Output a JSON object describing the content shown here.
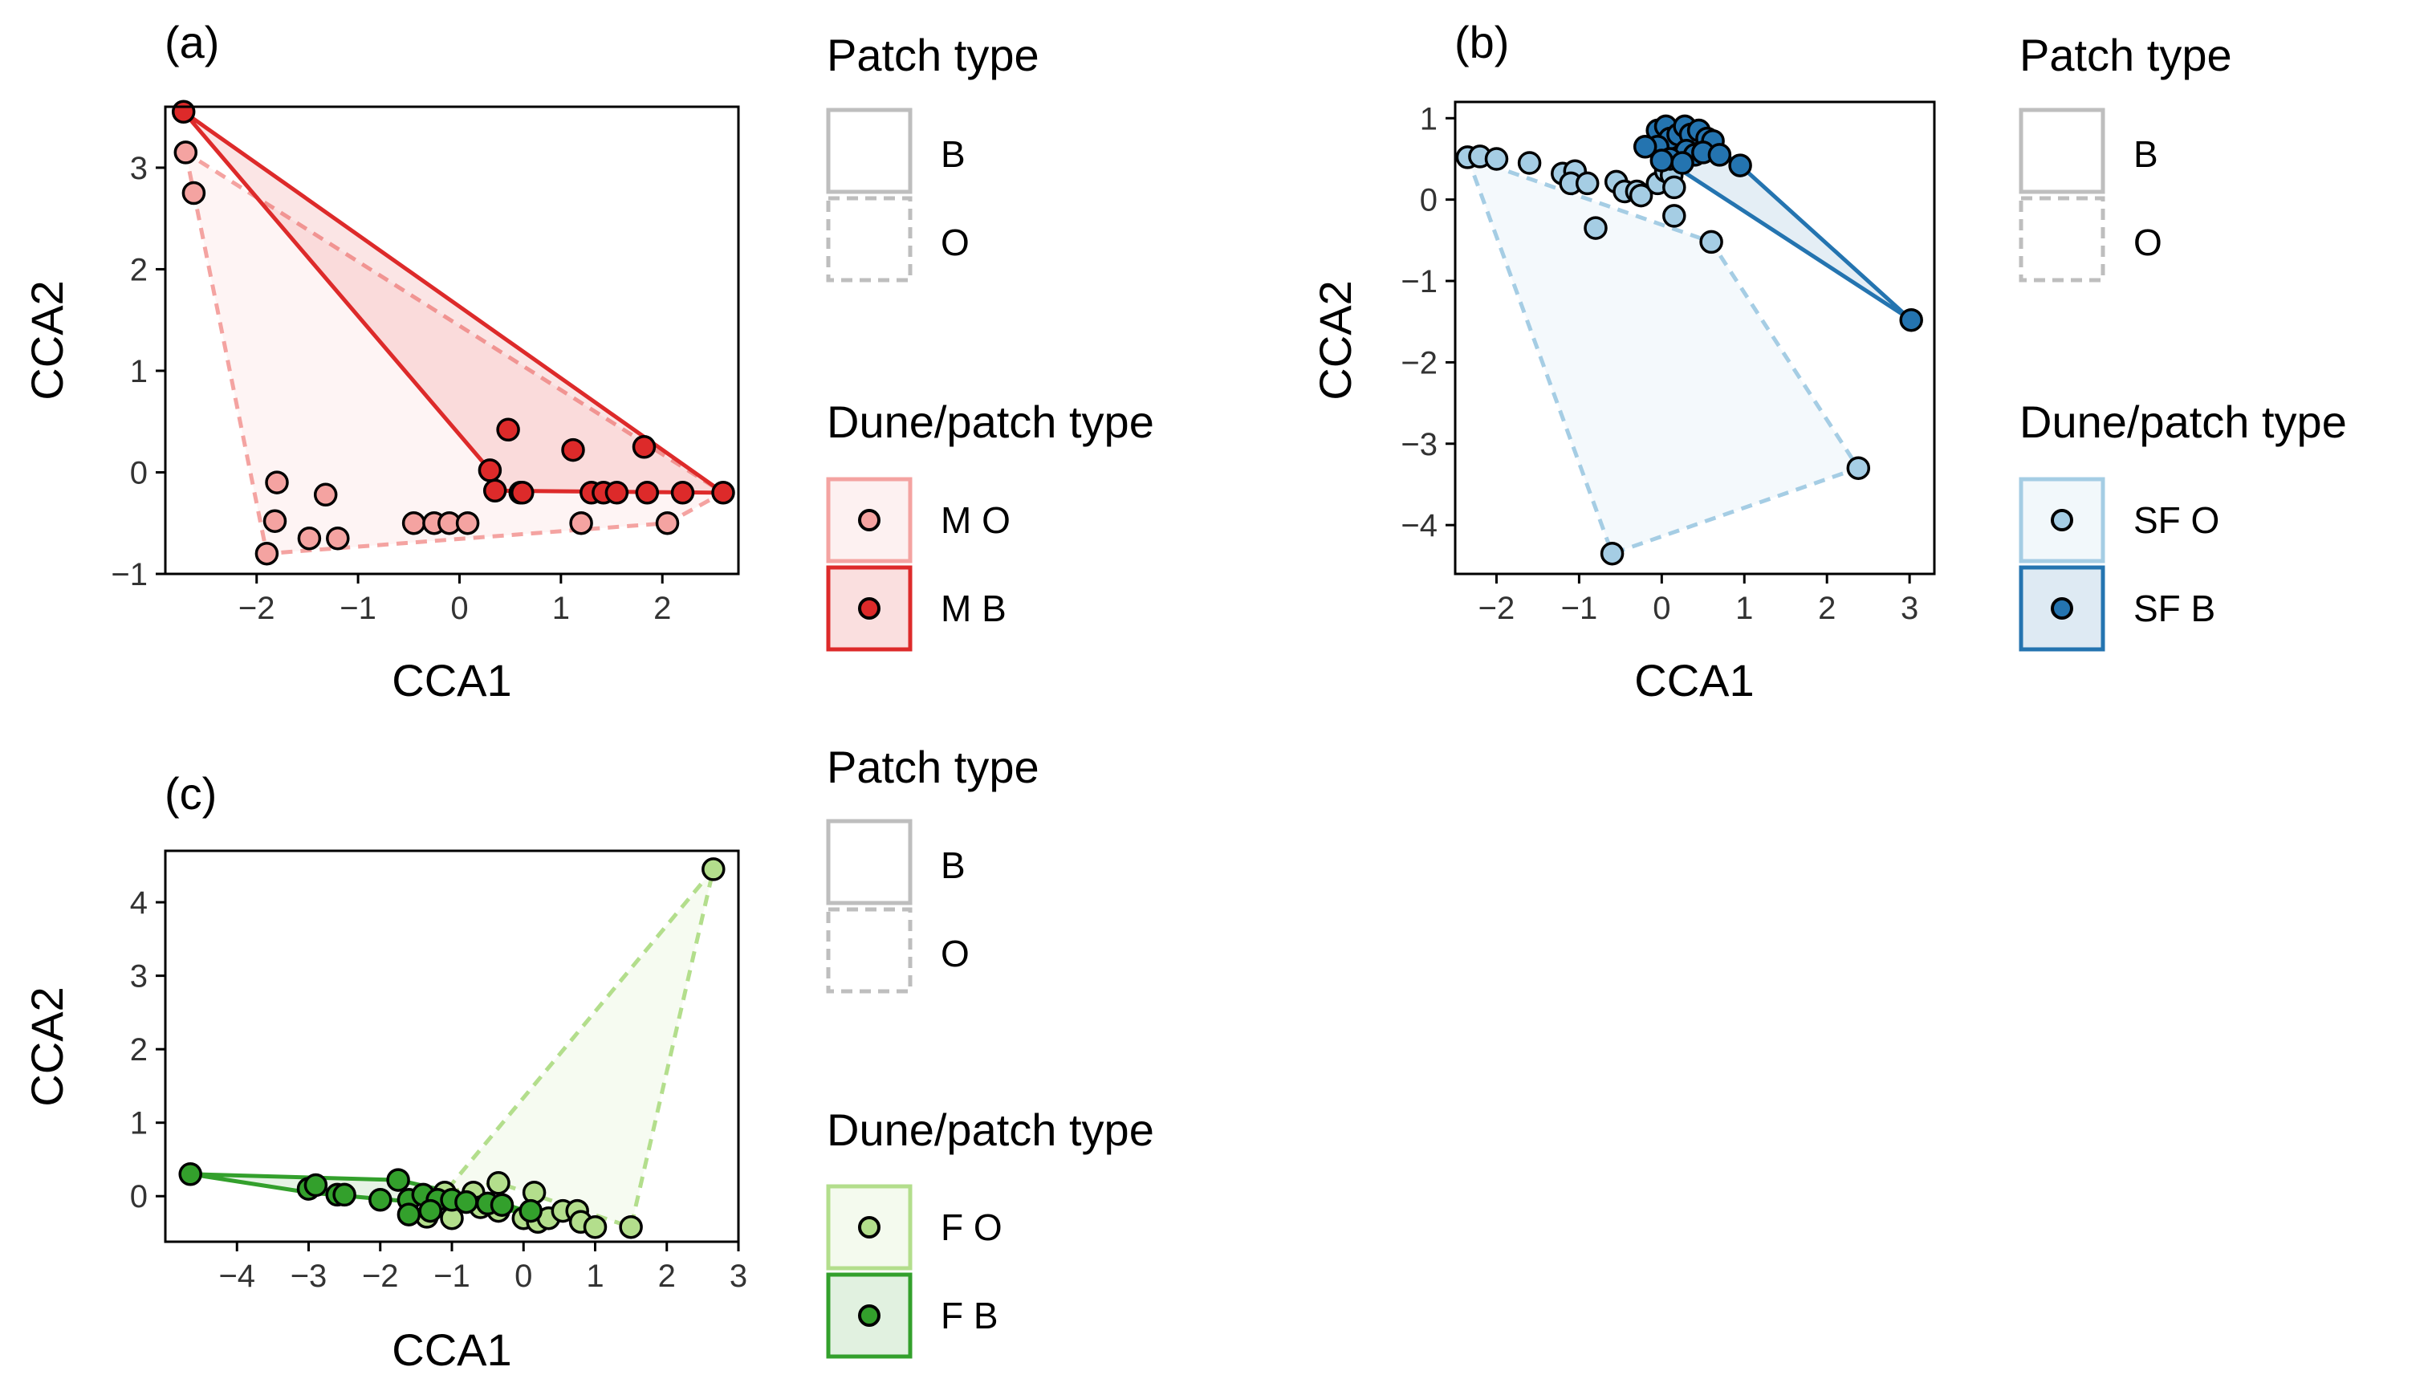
{
  "figure": {
    "legend_patch_title": "Patch type",
    "legend_dune_title": "Dune/patch type",
    "patch_types": [
      "B",
      "O"
    ],
    "colors": {
      "MO": "#F4A3A1",
      "MB": "#DD2A2A",
      "SFO": "#A5CDE4",
      "SFB": "#2474B0",
      "FO": "#B3DE8C",
      "FB": "#33A02C",
      "legend_outline": "#BEBEBE",
      "point_outline": "#000000",
      "axis": "#000000"
    }
  },
  "chart_data": [
    {
      "panel": "(a)",
      "type": "scatter",
      "xlabel": "CCA1",
      "ylabel": "CCA2",
      "xlim": [
        -2.9,
        2.75
      ],
      "ylim": [
        -1.0,
        3.6
      ],
      "xticks": [
        -2,
        -1,
        0,
        1,
        2
      ],
      "yticks": [
        -1,
        0,
        1,
        2,
        3
      ],
      "series": [
        {
          "name": "M O",
          "patch": "O",
          "points": [
            [
              -2.7,
              3.15
            ],
            [
              -2.62,
              2.75
            ],
            [
              -1.8,
              -0.1
            ],
            [
              -1.82,
              -0.48
            ],
            [
              -1.32,
              -0.22
            ],
            [
              -1.48,
              -0.65
            ],
            [
              -1.2,
              -0.65
            ],
            [
              -1.9,
              -0.8
            ],
            [
              -0.45,
              -0.5
            ],
            [
              -0.25,
              -0.5
            ],
            [
              -0.1,
              -0.5
            ],
            [
              0.08,
              -0.5
            ],
            [
              1.2,
              -0.5
            ],
            [
              2.05,
              -0.5
            ]
          ],
          "hull": [
            [
              -2.7,
              3.15
            ],
            [
              -1.9,
              -0.8
            ],
            [
              2.05,
              -0.5
            ],
            [
              2.6,
              -0.2
            ]
          ]
        },
        {
          "name": "M B",
          "patch": "B",
          "points": [
            [
              -2.72,
              3.55
            ],
            [
              0.3,
              0.02
            ],
            [
              0.35,
              -0.18
            ],
            [
              0.48,
              0.42
            ],
            [
              0.6,
              -0.2
            ],
            [
              0.62,
              -0.2
            ],
            [
              1.12,
              0.22
            ],
            [
              1.3,
              -0.2
            ],
            [
              1.42,
              -0.2
            ],
            [
              1.55,
              -0.2
            ],
            [
              1.82,
              0.25
            ],
            [
              1.85,
              -0.2
            ],
            [
              2.2,
              -0.2
            ],
            [
              2.6,
              -0.2
            ]
          ],
          "hull": [
            [
              -2.72,
              3.55
            ],
            [
              0.3,
              0.02
            ],
            [
              0.35,
              -0.18
            ],
            [
              2.6,
              -0.2
            ]
          ]
        }
      ]
    },
    {
      "panel": "(b)",
      "type": "scatter",
      "xlabel": "CCA1",
      "ylabel": "CCA2",
      "xlim": [
        -2.5,
        3.3
      ],
      "ylim": [
        -4.6,
        1.2
      ],
      "xticks": [
        -2,
        -1,
        0,
        1,
        2,
        3
      ],
      "yticks": [
        -4,
        -3,
        -2,
        -1,
        0,
        1
      ],
      "series": [
        {
          "name": "SF O",
          "patch": "O",
          "points": [
            [
              -2.35,
              0.52
            ],
            [
              -2.2,
              0.53
            ],
            [
              -2.0,
              0.5
            ],
            [
              -1.6,
              0.45
            ],
            [
              -1.2,
              0.32
            ],
            [
              -1.05,
              0.35
            ],
            [
              -1.1,
              0.2
            ],
            [
              -0.9,
              0.2
            ],
            [
              -0.55,
              0.22
            ],
            [
              -0.45,
              0.1
            ],
            [
              -0.3,
              0.1
            ],
            [
              -0.25,
              0.05
            ],
            [
              -0.05,
              0.2
            ],
            [
              0.05,
              0.35
            ],
            [
              0.12,
              0.3
            ],
            [
              0.15,
              0.15
            ],
            [
              -0.8,
              -0.35
            ],
            [
              0.15,
              -0.2
            ],
            [
              0.6,
              -0.52
            ],
            [
              -0.6,
              -4.35
            ],
            [
              2.38,
              -3.3
            ]
          ],
          "hull": [
            [
              -2.35,
              0.52
            ],
            [
              -0.6,
              -4.35
            ],
            [
              2.38,
              -3.3
            ],
            [
              0.6,
              -0.52
            ]
          ]
        },
        {
          "name": "SF B",
          "patch": "B",
          "points": [
            [
              -0.05,
              0.85
            ],
            [
              0.05,
              0.9
            ],
            [
              0.1,
              0.75
            ],
            [
              0.2,
              0.8
            ],
            [
              0.28,
              0.9
            ],
            [
              0.35,
              0.8
            ],
            [
              0.45,
              0.85
            ],
            [
              0.55,
              0.75
            ],
            [
              0.62,
              0.72
            ],
            [
              0.3,
              0.6
            ],
            [
              0.4,
              0.55
            ],
            [
              -0.05,
              0.65
            ],
            [
              -0.2,
              0.65
            ],
            [
              0.1,
              0.5
            ],
            [
              0.25,
              0.45
            ],
            [
              0.5,
              0.58
            ],
            [
              0.7,
              0.55
            ],
            [
              0.95,
              0.42
            ],
            [
              0.0,
              0.48
            ],
            [
              3.02,
              -1.48
            ]
          ],
          "hull": [
            [
              -0.2,
              0.65
            ],
            [
              0.1,
              0.45
            ],
            [
              3.02,
              -1.48
            ],
            [
              0.95,
              0.42
            ],
            [
              0.28,
              0.92
            ]
          ]
        }
      ]
    },
    {
      "panel": "(c)",
      "type": "scatter",
      "xlabel": "CCA1",
      "ylabel": "CCA2",
      "xlim": [
        -5.0,
        3.0
      ],
      "ylim": [
        -0.62,
        4.7
      ],
      "xticks": [
        -4,
        -3,
        -2,
        -1,
        0,
        1,
        2,
        3
      ],
      "yticks": [
        0,
        1,
        2,
        3,
        4
      ],
      "series": [
        {
          "name": "F O",
          "patch": "O",
          "points": [
            [
              2.65,
              4.45
            ],
            [
              -1.1,
              0.05
            ],
            [
              -0.7,
              0.05
            ],
            [
              -0.35,
              0.18
            ],
            [
              0.15,
              0.05
            ],
            [
              -0.6,
              -0.15
            ],
            [
              -0.35,
              -0.2
            ],
            [
              0.0,
              -0.3
            ],
            [
              0.2,
              -0.35
            ],
            [
              0.35,
              -0.3
            ],
            [
              0.55,
              -0.2
            ],
            [
              0.75,
              -0.2
            ],
            [
              0.8,
              -0.35
            ],
            [
              1.0,
              -0.42
            ],
            [
              1.5,
              -0.42
            ],
            [
              -1.35,
              -0.28
            ],
            [
              -1.0,
              -0.3
            ]
          ],
          "hull": [
            [
              2.65,
              4.45
            ],
            [
              -1.1,
              0.05
            ],
            [
              -0.35,
              0.18
            ],
            [
              1.5,
              -0.42
            ]
          ]
        },
        {
          "name": "F B",
          "patch": "B",
          "points": [
            [
              -4.65,
              0.3
            ],
            [
              -3.0,
              0.1
            ],
            [
              -2.9,
              0.15
            ],
            [
              -2.6,
              0.02
            ],
            [
              -2.5,
              0.02
            ],
            [
              -1.75,
              0.22
            ],
            [
              -1.6,
              -0.05
            ],
            [
              -2.0,
              -0.05
            ],
            [
              -1.4,
              0.02
            ],
            [
              -1.2,
              -0.05
            ],
            [
              -1.0,
              -0.05
            ],
            [
              -0.8,
              -0.08
            ],
            [
              -0.5,
              -0.1
            ],
            [
              -0.3,
              -0.12
            ],
            [
              0.1,
              -0.2
            ],
            [
              -1.6,
              -0.25
            ],
            [
              -1.3,
              -0.2
            ]
          ],
          "hull": [
            [
              -4.65,
              0.3
            ],
            [
              -3.0,
              0.05
            ],
            [
              0.1,
              -0.22
            ],
            [
              -0.3,
              -0.1
            ],
            [
              -1.75,
              0.22
            ]
          ]
        }
      ]
    }
  ]
}
